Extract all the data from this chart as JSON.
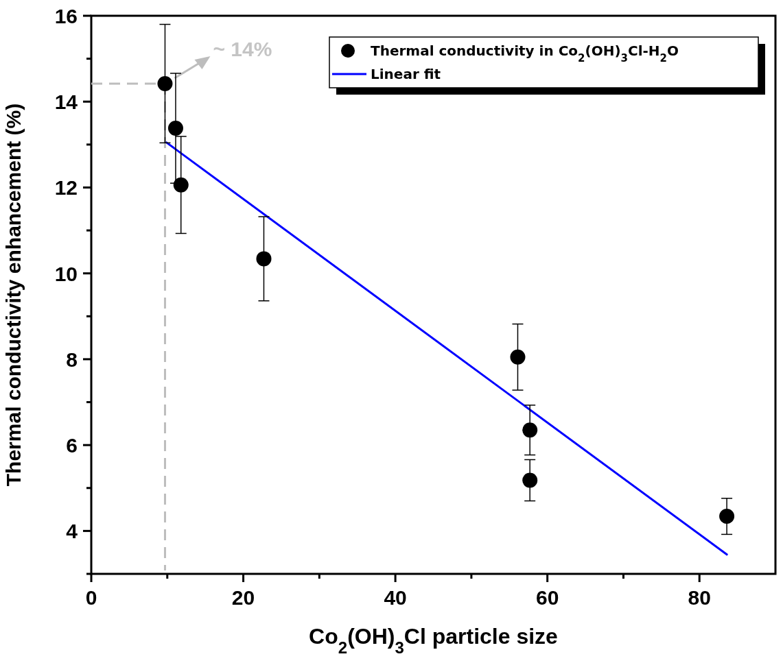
{
  "chart_data": {
    "type": "scatter",
    "xlabel": "Co$_{2}$(OH)$_{3}$Cl particle size",
    "ylabel": "Thermal conductivity enhancement (%)",
    "x": [
      9.7,
      11.1,
      11.8,
      22.7,
      56.1,
      57.7,
      57.7,
      83.6
    ],
    "series": [
      {
        "name": "Thermal conductivity in Co$_{2}$(OH)$_{3}$Cl-H$_{2}$O",
        "color": "#000000",
        "marker": "circle",
        "values": [
          14.42,
          13.38,
          12.06,
          10.34,
          8.05,
          6.35,
          5.18,
          4.34
        ],
        "errors": [
          1.38,
          1.28,
          1.13,
          0.98,
          0.77,
          0.58,
          0.48,
          0.42
        ]
      },
      {
        "name": "Linear fit",
        "type": "line",
        "color": "#0000ff",
        "x": [
          9.8,
          83.7
        ],
        "values": [
          13.06,
          3.44
        ]
      }
    ],
    "xlim": [
      0,
      90
    ],
    "ylim": [
      3,
      16
    ],
    "xticks": [
      0,
      {
        "value": 10,
        "label": null
      },
      20,
      {
        "value": 30,
        "label": null
      },
      40,
      {
        "value": 50,
        "label": null
      },
      60,
      {
        "value": 70,
        "label": null
      },
      80
    ],
    "yticks": [
      {
        "value": 3,
        "label": null
      },
      4,
      {
        "value": 5,
        "label": null
      },
      6,
      {
        "value": 7,
        "label": null
      },
      8,
      {
        "value": 9,
        "label": null
      },
      10,
      {
        "value": 11,
        "label": null
      },
      12,
      {
        "value": 13,
        "label": null
      },
      14,
      {
        "value": 15,
        "label": null
      },
      16
    ],
    "legend": "top right",
    "annotations": [
      {
        "text": "~ 14%",
        "x": 9.7,
        "y": 14.42
      }
    ]
  }
}
